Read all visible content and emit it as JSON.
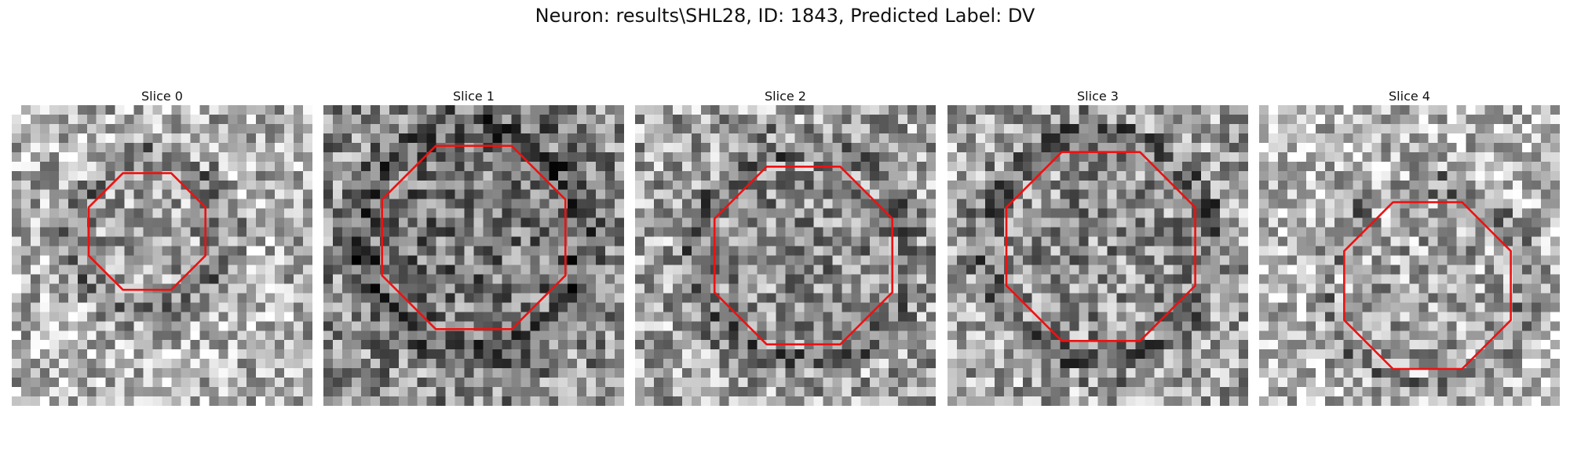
{
  "figure": {
    "title": "Neuron: results\\SHL28, ID: 1843, Predicted Label: DV"
  },
  "panels": [
    {
      "title": "Slice 0"
    },
    {
      "title": "Slice 1"
    },
    {
      "title": "Slice 2"
    },
    {
      "title": "Slice 3"
    },
    {
      "title": "Slice 4"
    }
  ],
  "colors": {
    "contour": "#ee1111",
    "image_colormap": "gray"
  }
}
